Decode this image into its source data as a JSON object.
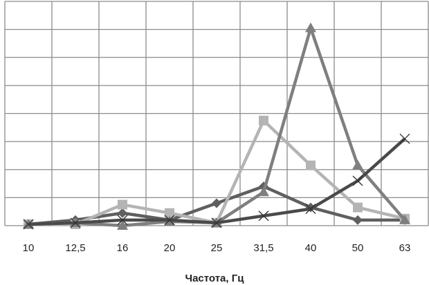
{
  "chart_data": {
    "type": "line",
    "title": "",
    "xlabel": "Частота, Гц",
    "ylabel": "",
    "categories": [
      "10",
      "12,5",
      "16",
      "20",
      "25",
      "31,5",
      "40",
      "50",
      "63"
    ],
    "ylim": [
      0,
      8
    ],
    "grid": true,
    "legend": "none",
    "series": [
      {
        "name": "series-diamond",
        "marker": "diamond",
        "color": "#5f5f5f",
        "values": [
          0.05,
          0.2,
          0.45,
          0.2,
          0.8,
          1.4,
          0.65,
          0.2,
          0.2
        ]
      },
      {
        "name": "series-square",
        "marker": "square",
        "color": "#b4b4b4",
        "values": [
          0.05,
          0.05,
          0.75,
          0.45,
          0.1,
          3.75,
          2.15,
          0.65,
          0.25
        ]
      },
      {
        "name": "series-triangle",
        "marker": "triangle",
        "color": "#7f7f7f",
        "values": [
          0.05,
          0.1,
          0.0,
          0.15,
          0.1,
          1.2,
          7.05,
          2.15,
          0.2
        ]
      },
      {
        "name": "series-cross",
        "marker": "cross",
        "color": "#4a4a4a",
        "values": [
          0.05,
          0.1,
          0.2,
          0.2,
          0.1,
          0.35,
          0.6,
          1.6,
          3.1
        ]
      }
    ]
  }
}
